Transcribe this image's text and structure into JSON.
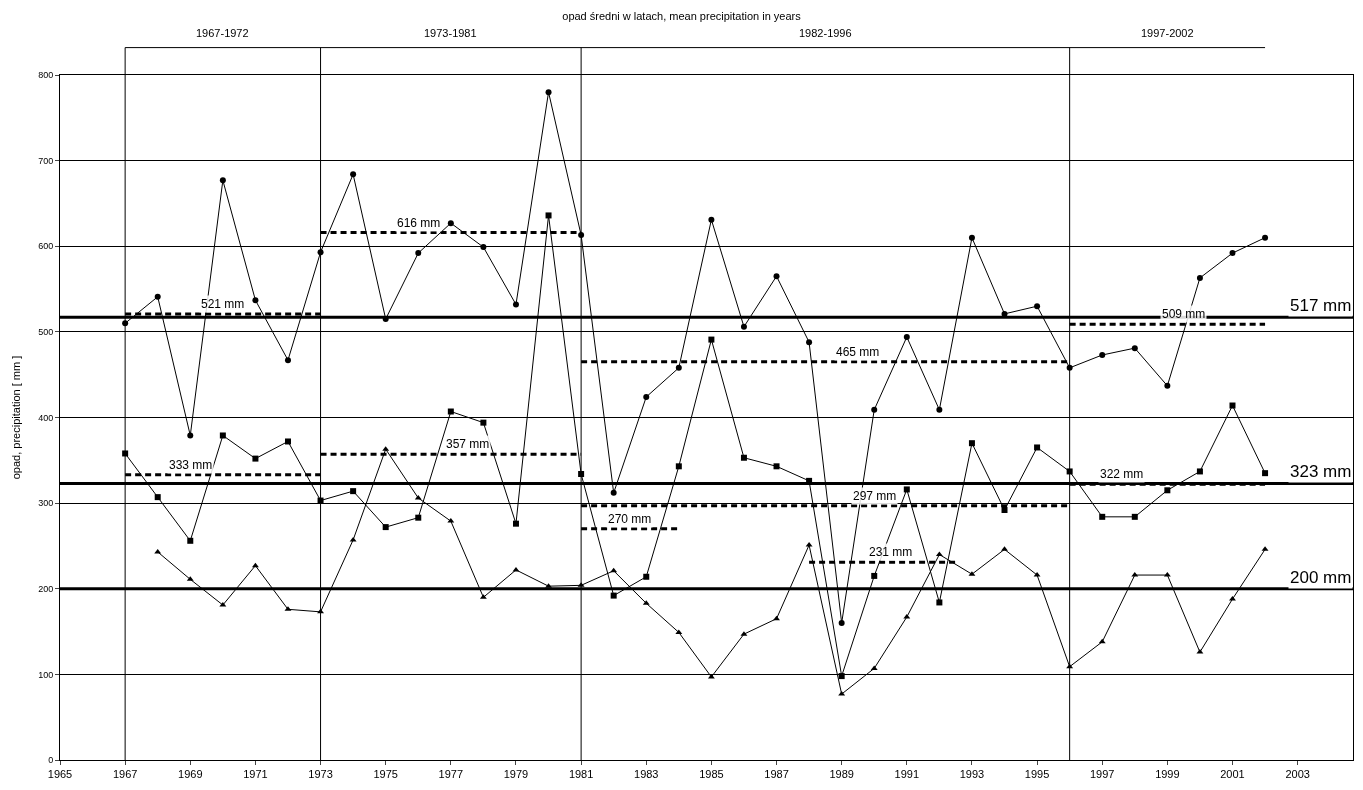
{
  "chart_data": {
    "type": "line",
    "title": "opad średni w latach, mean precipitation in years",
    "ylabel": "opad, precipitation [ mm ]",
    "x": [
      1967,
      1968,
      1969,
      1970,
      1971,
      1972,
      1973,
      1974,
      1975,
      1976,
      1977,
      1978,
      1979,
      1980,
      1981,
      1982,
      1983,
      1984,
      1985,
      1986,
      1987,
      1988,
      1989,
      1990,
      1991,
      1992,
      1993,
      1994,
      1995,
      1996,
      1997,
      1998,
      1999,
      2000,
      2001,
      2002
    ],
    "series": [
      {
        "color": "#000000",
        "marker": "circle",
        "values": [
          510,
          541,
          379,
          677,
          537,
          467,
          593,
          684,
          515,
          592,
          627,
          599,
          532,
          780,
          613,
          312,
          424,
          458,
          631,
          506,
          565,
          488,
          160,
          409,
          494,
          409,
          610,
          521,
          530,
          458,
          473,
          481,
          437,
          563,
          592,
          610
        ]
      },
      {
        "color": "#000000",
        "marker": "square",
        "values": [
          358,
          307,
          256,
          379,
          352,
          372,
          303,
          314,
          272,
          283,
          407,
          394,
          276,
          636,
          334,
          192,
          214,
          343,
          491,
          353,
          343,
          326,
          98,
          215,
          316,
          184,
          370,
          292,
          365,
          337,
          284,
          284,
          315,
          337,
          414,
          335
        ]
      },
      {
        "color": "#000000",
        "marker": "triangle",
        "x": [
          1968,
          1969,
          1970,
          1971,
          1972,
          1973,
          1974,
          1975,
          1976,
          1977,
          1978,
          1979,
          1980,
          1981,
          1982,
          1983,
          1984,
          1985,
          1986,
          1987,
          1988,
          1989,
          1990,
          1991,
          1992,
          1993,
          1994,
          1995,
          1996,
          1997,
          1998,
          1999,
          2000,
          2001,
          2002
        ],
        "values": [
          243,
          211,
          181,
          227,
          176,
          173,
          257,
          363,
          306,
          279,
          190,
          222,
          203,
          204,
          221,
          183,
          149,
          97,
          147,
          165,
          251,
          77,
          107,
          167,
          240,
          217,
          246,
          216,
          109,
          138,
          216,
          216,
          126,
          188,
          246
        ]
      },
      {
        "color": "#000000",
        "marker": "none",
        "line_style": "dashed",
        "x": [
          1967,
          1973
        ],
        "values": [
          521,
          521
        ]
      },
      {
        "color": "#000000",
        "marker": "none",
        "line_style": "dashed",
        "x": [
          1973,
          1981
        ],
        "values": [
          616,
          616
        ]
      },
      {
        "color": "#000000",
        "marker": "none",
        "line_style": "dashed",
        "x": [
          1981,
          1996
        ],
        "values": [
          465,
          465
        ]
      },
      {
        "color": "#000000",
        "marker": "none",
        "line_style": "dashed",
        "x": [
          1996,
          2002
        ],
        "values": [
          509,
          509
        ]
      },
      {
        "color": "#000000",
        "marker": "none",
        "line_style": "dashed",
        "x": [
          1967,
          1973
        ],
        "values": [
          333,
          333
        ]
      },
      {
        "color": "#000000",
        "marker": "none",
        "line_style": "dashed",
        "x": [
          1973,
          1981
        ],
        "values": [
          357,
          357
        ]
      },
      {
        "color": "#000000",
        "marker": "none",
        "line_style": "dashed",
        "x": [
          1981,
          1996
        ],
        "values": [
          297,
          297
        ]
      },
      {
        "color": "#000000",
        "marker": "none",
        "line_style": "dashed",
        "x": [
          1996,
          2002
        ],
        "values": [
          322,
          322
        ]
      },
      {
        "color": "#000000",
        "marker": "none",
        "line_style": "dashed",
        "x": [
          1981,
          1984
        ],
        "values": [
          270,
          270
        ]
      },
      {
        "color": "#000000",
        "marker": "none",
        "line_style": "dashed",
        "x": [
          1988,
          1992.5
        ],
        "values": [
          231,
          231
        ]
      }
    ],
    "xlim": [
      1965,
      2004.7
    ],
    "xticks": [
      1965,
      1967,
      1969,
      1971,
      1973,
      1975,
      1977,
      1979,
      1981,
      1983,
      1985,
      1987,
      1989,
      1991,
      1993,
      1995,
      1997,
      1999,
      2001,
      2003
    ],
    "ylim": [
      0,
      800
    ],
    "yticks": [
      0,
      100,
      200,
      300,
      400,
      500,
      600,
      700,
      800
    ],
    "grid": "y",
    "ref_lines": [
      {
        "axis": "y",
        "value": 517,
        "label": "517 mm"
      },
      {
        "axis": "y",
        "value": 323,
        "label": "323 mm"
      },
      {
        "axis": "y",
        "value": 200,
        "label": "200 mm"
      },
      {
        "axis": "x",
        "value": 1967
      },
      {
        "axis": "x",
        "value": 1973
      },
      {
        "axis": "x",
        "value": 1981
      },
      {
        "axis": "x",
        "value": 1996
      }
    ],
    "annotations": [
      "1967-1972",
      "1973-1981",
      "1982-1996",
      "1997-2002",
      {
        "text": "521 mm",
        "x": 1970,
        "y": 521
      },
      {
        "text": "616 mm",
        "x": 1976,
        "y": 616
      },
      {
        "text": "465 mm",
        "x": 1989.5,
        "y": 465
      },
      {
        "text": "509 mm",
        "x": 1999.5,
        "y": 509
      },
      {
        "text": "333 mm",
        "x": 1969,
        "y": 333
      },
      {
        "text": "357 mm",
        "x": 1977.5,
        "y": 357
      },
      {
        "text": "297 mm",
        "x": 1990,
        "y": 297
      },
      {
        "text": "322 mm",
        "x": 1997.6,
        "y": 322
      },
      {
        "text": "270 mm",
        "x": 1982.5,
        "y": 270
      },
      {
        "text": "231 mm",
        "x": 1990.5,
        "y": 231
      }
    ]
  }
}
